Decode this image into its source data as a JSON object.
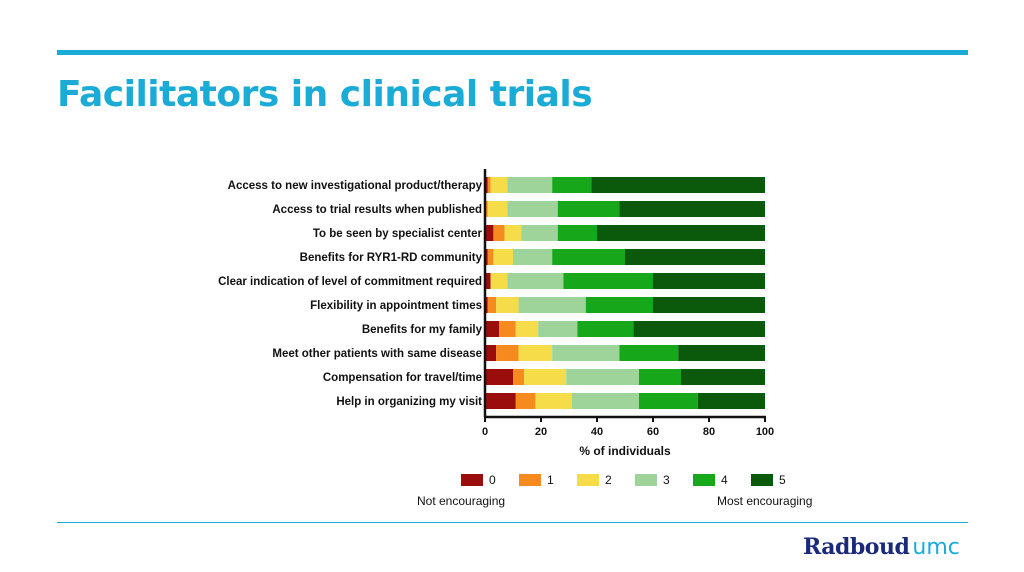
{
  "slide": {
    "title": "Facilitators in clinical trials",
    "logo_part1": "Radboud",
    "logo_part2": "umc",
    "accent_color": "#1aabd6",
    "logo_color": "#1a2a78"
  },
  "legend_notes": {
    "low": "Not encouraging",
    "high": "Most encouraging"
  },
  "chart_data": {
    "type": "bar",
    "orientation": "horizontal",
    "stacked": true,
    "categories": [
      "Access to new investigational product/therapy",
      "Access to trial results when published",
      "To be seen by specialist center",
      "Benefits for RYR1-RD community",
      "Clear indication of level of commitment required",
      "Flexibility in appointment times",
      "Benefits for my family",
      "Meet other patients with same disease",
      "Compensation for travel/time",
      "Help in organizing my visit"
    ],
    "series": [
      {
        "name": "0",
        "color": "#9b0d0d",
        "values": [
          1,
          0,
          3,
          1,
          2,
          1,
          5,
          4,
          10,
          11
        ]
      },
      {
        "name": "1",
        "color": "#f58a1f",
        "values": [
          1,
          1,
          4,
          2,
          0,
          3,
          6,
          8,
          4,
          7
        ]
      },
      {
        "name": "2",
        "color": "#f7dc4a",
        "values": [
          6,
          7,
          6,
          7,
          6,
          8,
          8,
          12,
          15,
          13
        ]
      },
      {
        "name": "3",
        "color": "#9ed49a",
        "values": [
          16,
          18,
          13,
          14,
          20,
          24,
          14,
          24,
          26,
          24
        ]
      },
      {
        "name": "4",
        "color": "#16a81a",
        "values": [
          14,
          22,
          14,
          26,
          32,
          24,
          20,
          21,
          15,
          21
        ]
      },
      {
        "name": "5",
        "color": "#0b5a0b",
        "values": [
          62,
          52,
          60,
          50,
          40,
          40,
          47,
          31,
          30,
          24
        ]
      }
    ],
    "xlabel": "% of individuals",
    "ylabel": "",
    "xlim": [
      0,
      100
    ],
    "xticks": [
      0,
      20,
      40,
      60,
      80,
      100
    ],
    "grid": false,
    "legend_position": "bottom"
  }
}
